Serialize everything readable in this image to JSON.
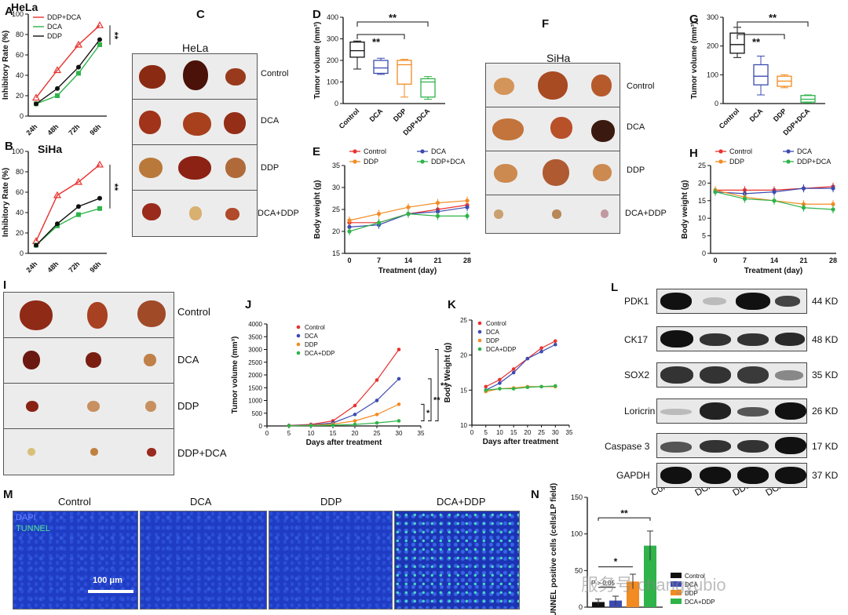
{
  "panels": {
    "A": "A",
    "B": "B",
    "C": "C",
    "D": "D",
    "E": "E",
    "F": "F",
    "G": "G",
    "H": "H",
    "I": "I",
    "J": "J",
    "K": "K",
    "L": "L",
    "M": "M",
    "N": "N"
  },
  "photo_labels": {
    "hela": "HeLa",
    "siha": "SiHa",
    "c_rows": [
      "Control",
      "DCA",
      "DDP",
      "DCA+DDP"
    ],
    "f_rows": [
      "Control",
      "DCA",
      "DDP",
      "DCA+DDP"
    ],
    "i_rows": [
      "Control",
      "DCA",
      "DDP",
      "DDP+DCA"
    ]
  },
  "western": {
    "headers": [
      "Control",
      "DCA",
      "DDP",
      "DCA+DDP"
    ],
    "rows": [
      {
        "name": "PDK1",
        "kd": "44 KD"
      },
      {
        "name": "CK17",
        "kd": "48 KD"
      },
      {
        "name": "SOX2",
        "kd": "35 KD"
      },
      {
        "name": "Loricrin",
        "kd": "26 KD"
      },
      {
        "name": "Caspase 3",
        "kd": "17 KD"
      },
      {
        "name": "GAPDH",
        "kd": "37 KD"
      }
    ]
  },
  "microscopy": {
    "titles": [
      "Control",
      "DCA",
      "DDP",
      "DCA+DDP"
    ],
    "stain1": "DAPI",
    "stain2": "TUNNEL",
    "scale": "100 μm"
  },
  "watermark": "服务号 changyubio",
  "colors": {
    "red": "#e8322e",
    "green": "#2fb34a",
    "black": "#111111",
    "blue": "#3c4bb0",
    "orange": "#f28b22"
  },
  "chart_data": [
    {
      "id": "A",
      "type": "line",
      "title": "HeLa",
      "ylabel": "Inhibitory Rate (%)",
      "categories": [
        "24h",
        "48h",
        "72h",
        "96h"
      ],
      "ylim": [
        0,
        100
      ],
      "yticks": [
        0,
        20,
        40,
        60,
        80,
        100
      ],
      "series": [
        {
          "name": "DDP+DCA",
          "values": [
            18,
            45,
            70,
            89
          ]
        },
        {
          "name": "DCA",
          "values": [
            12,
            20,
            42,
            70
          ]
        },
        {
          "name": "DDP",
          "values": [
            12,
            27,
            48,
            75
          ]
        }
      ],
      "annotation": "**"
    },
    {
      "id": "B",
      "type": "line",
      "title": "SiHa",
      "ylabel": "Inhibitory Rate (%)",
      "categories": [
        "24h",
        "48h",
        "72h",
        "96h"
      ],
      "ylim": [
        0,
        100
      ],
      "yticks": [
        0,
        20,
        40,
        60,
        80,
        100
      ],
      "series": [
        {
          "name": "DDP+DCA",
          "values": [
            12,
            57,
            70,
            87
          ]
        },
        {
          "name": "DCA",
          "values": [
            8,
            27,
            38,
            44
          ]
        },
        {
          "name": "DDP",
          "values": [
            8,
            29,
            46,
            54
          ]
        }
      ],
      "annotation": "**"
    },
    {
      "id": "D",
      "type": "boxplot",
      "ylabel": "Tumor volume (mm³)",
      "categories": [
        "Control",
        "DCA",
        "DDP",
        "DDP+DCA"
      ],
      "ylim": [
        0,
        400
      ],
      "yticks": [
        0,
        100,
        200,
        300,
        400
      ],
      "boxes": [
        {
          "min": 160,
          "q1": 215,
          "median": 245,
          "q3": 285,
          "max": 290
        },
        {
          "min": 135,
          "q1": 140,
          "median": 165,
          "q3": 200,
          "max": 210
        },
        {
          "min": 30,
          "q1": 90,
          "median": 180,
          "q3": 200,
          "max": 205
        },
        {
          "min": 20,
          "q1": 30,
          "median": 100,
          "q3": 115,
          "max": 125
        }
      ],
      "annotations": [
        "**",
        "**"
      ]
    },
    {
      "id": "E",
      "type": "line",
      "ylabel": "Body weight (g)",
      "xlabel": "Treatment (day)",
      "x": [
        0,
        7,
        14,
        21,
        28
      ],
      "ylim": [
        15,
        35
      ],
      "yticks": [
        15,
        20,
        25,
        30,
        35
      ],
      "series": [
        {
          "name": "Control",
          "values": [
            22,
            22,
            24,
            25,
            26
          ]
        },
        {
          "name": "DCA",
          "values": [
            21,
            21.5,
            24,
            24.5,
            25.5
          ]
        },
        {
          "name": "DDP",
          "values": [
            22.5,
            24,
            25.5,
            26.5,
            27
          ]
        },
        {
          "name": "DDP+DCA",
          "values": [
            20,
            22,
            24,
            23.5,
            23.5
          ]
        }
      ]
    },
    {
      "id": "G",
      "type": "boxplot",
      "ylabel": "Tumor volume (mm³)",
      "categories": [
        "Control",
        "DCA",
        "DDP",
        "DDP+DCA"
      ],
      "ylim": [
        0,
        300
      ],
      "yticks": [
        0,
        100,
        200,
        300
      ],
      "boxes": [
        {
          "min": 160,
          "q1": 175,
          "median": 205,
          "q3": 245,
          "max": 265
        },
        {
          "min": 30,
          "q1": 65,
          "median": 95,
          "q3": 135,
          "max": 165
        },
        {
          "min": 55,
          "q1": 60,
          "median": 78,
          "q3": 95,
          "max": 100
        },
        {
          "min": 2,
          "q1": 5,
          "median": 15,
          "q3": 28,
          "max": 30
        }
      ],
      "annotations": [
        "**",
        "**"
      ]
    },
    {
      "id": "H",
      "type": "line",
      "ylabel": "Body weight (g)",
      "xlabel": "Treatment (day)",
      "x": [
        0,
        7,
        14,
        21,
        28
      ],
      "ylim": [
        0,
        25
      ],
      "yticks": [
        0,
        5,
        10,
        15,
        20,
        25
      ],
      "series": [
        {
          "name": "Control",
          "values": [
            18,
            18,
            18,
            18.5,
            19
          ]
        },
        {
          "name": "DCA",
          "values": [
            17.5,
            17,
            17.5,
            18.5,
            18.5
          ]
        },
        {
          "name": "DDP",
          "values": [
            18,
            16,
            15,
            14,
            14
          ]
        },
        {
          "name": "DDP+DCA",
          "values": [
            17.5,
            15.5,
            15,
            13,
            12.5
          ]
        }
      ]
    },
    {
      "id": "J",
      "type": "line",
      "ylabel": "Tumor volume (mm³)",
      "xlabel": "Days after treatment",
      "x": [
        5,
        10,
        15,
        20,
        25,
        30
      ],
      "xlim": [
        0,
        35
      ],
      "xticks": [
        0,
        5,
        10,
        15,
        20,
        25,
        30,
        35
      ],
      "ylim": [
        0,
        4000
      ],
      "yticks": [
        0,
        500,
        1000,
        1500,
        2000,
        2500,
        3000,
        3500,
        4000
      ],
      "series": [
        {
          "name": "Control",
          "values": [
            20,
            60,
            200,
            800,
            1800,
            3000
          ]
        },
        {
          "name": "DCA",
          "values": [
            15,
            40,
            120,
            450,
            1000,
            1850
          ]
        },
        {
          "name": "DDP",
          "values": [
            10,
            25,
            70,
            200,
            450,
            850
          ]
        },
        {
          "name": "DCA+DDP",
          "values": [
            5,
            10,
            30,
            60,
            120,
            200
          ]
        }
      ],
      "annotations": [
        "*",
        "**",
        "**"
      ]
    },
    {
      "id": "K",
      "type": "line",
      "ylabel": "Body Weight (g)",
      "xlabel": "Days after treatment",
      "x": [
        5,
        10,
        15,
        20,
        25,
        30
      ],
      "xlim": [
        0,
        35
      ],
      "xticks": [
        0,
        5,
        10,
        15,
        20,
        25,
        30,
        35
      ],
      "ylim": [
        10,
        25
      ],
      "yticks": [
        10,
        15,
        20,
        25
      ],
      "series": [
        {
          "name": "Control",
          "values": [
            15.5,
            16.5,
            18,
            19.5,
            21,
            22
          ]
        },
        {
          "name": "DCA",
          "values": [
            15,
            16,
            17.5,
            19.5,
            20.5,
            21.5
          ]
        },
        {
          "name": "DDP",
          "values": [
            14.8,
            15.2,
            15.3,
            15.5,
            15.5,
            15.5
          ]
        },
        {
          "name": "DCA+DDP",
          "values": [
            15,
            15.2,
            15.2,
            15.4,
            15.5,
            15.6
          ]
        }
      ]
    },
    {
      "id": "N",
      "type": "bar",
      "ylabel": "TUNNEL positive cells (cells/LP field)",
      "categories": [
        "Control",
        "DCA",
        "DDP",
        "DCA+DDP"
      ],
      "ylim": [
        0,
        150
      ],
      "yticks": [
        0,
        50,
        100,
        150
      ],
      "values": [
        7,
        9,
        35,
        84
      ],
      "errors": [
        4,
        6,
        10,
        20
      ],
      "annotations": [
        "*",
        "**",
        "P > 0.05"
      ]
    }
  ]
}
